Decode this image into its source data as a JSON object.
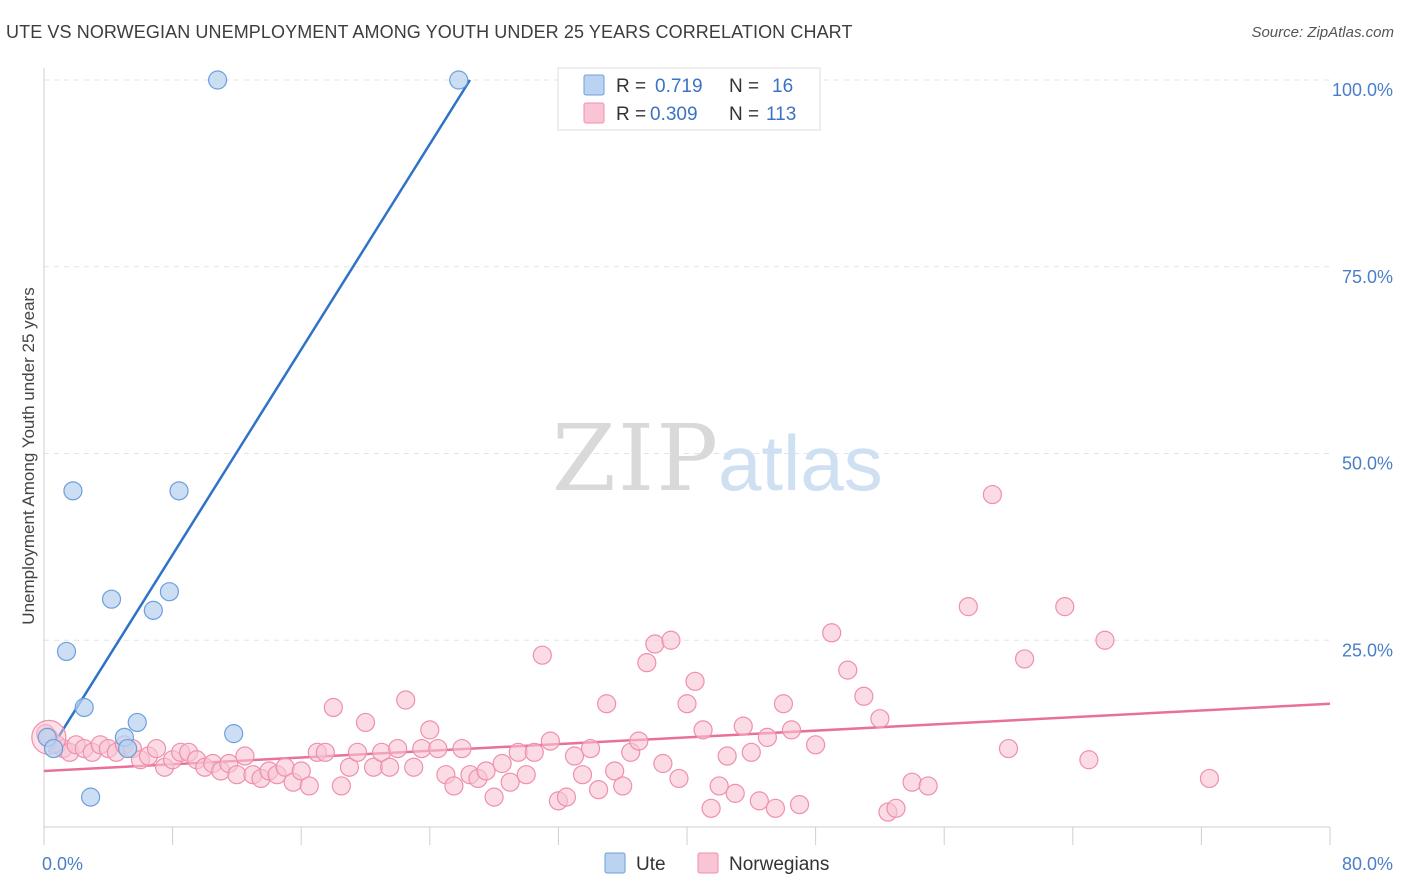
{
  "header": {
    "title": "UTE VS NORWEGIAN UNEMPLOYMENT AMONG YOUTH UNDER 25 YEARS CORRELATION CHART",
    "source": "Source: ZipAtlas.com"
  },
  "watermark": {
    "zip": "ZIP",
    "atlas": "atlas"
  },
  "colors": {
    "ute_fill": "#b9d3f0",
    "ute_stroke": "#6d9fdc",
    "ute_line": "#2f72c8",
    "nor_fill": "#f9c4d4",
    "nor_stroke": "#ef8fae",
    "nor_line": "#e8709a",
    "tick_text": "#4a7fc8",
    "grid": "#e3e3e3"
  },
  "legend": {
    "rows": [
      {
        "r_label": "R =",
        "r_value": "0.719",
        "n_label": "N =",
        "n_value": "16"
      },
      {
        "r_label": "R =",
        "r_value": "0.309",
        "n_label": "N =",
        "n_value": "113"
      }
    ]
  },
  "chart_data": {
    "type": "scatter",
    "ylabel": "Unemployment Among Youth under 25 years",
    "xlim": [
      0,
      80
    ],
    "ylim": [
      0,
      100
    ],
    "x_tick_labels": [
      {
        "value": 0,
        "label": "0.0%"
      },
      {
        "value": 80,
        "label": "80.0%"
      }
    ],
    "y_tick_labels": [
      {
        "value": 25,
        "label": "25.0%"
      },
      {
        "value": 50,
        "label": "50.0%"
      },
      {
        "value": 75,
        "label": "75.0%"
      },
      {
        "value": 100,
        "label": "100.0%"
      }
    ],
    "x_minor_ticks": [
      8,
      16,
      24,
      32,
      40,
      48,
      56,
      64,
      72,
      80
    ],
    "grid": true,
    "series": [
      {
        "name": "Ute",
        "color": "#b9d3f0",
        "points": [
          [
            0.2,
            12.0
          ],
          [
            0.6,
            10.5
          ],
          [
            1.4,
            23.5
          ],
          [
            1.8,
            45.0
          ],
          [
            2.5,
            16.0
          ],
          [
            2.9,
            4.0
          ],
          [
            4.2,
            30.5
          ],
          [
            5.0,
            12.0
          ],
          [
            5.2,
            10.5
          ],
          [
            5.8,
            14.0
          ],
          [
            6.8,
            29.0
          ],
          [
            7.8,
            31.5
          ],
          [
            8.4,
            45.0
          ],
          [
            10.8,
            100.0
          ],
          [
            11.8,
            12.5
          ],
          [
            25.8,
            100.0
          ]
        ],
        "trend": {
          "x1": 0.3,
          "y1": 10.0,
          "x2": 26.5,
          "y2": 100.0
        }
      },
      {
        "name": "Norwegians",
        "color": "#f9c4d4",
        "points": [
          [
            0.3,
            12.0
          ],
          [
            0.8,
            11.0
          ],
          [
            1.2,
            10.5
          ],
          [
            1.6,
            10.0
          ],
          [
            2.0,
            11.0
          ],
          [
            2.5,
            10.5
          ],
          [
            3.0,
            10.0
          ],
          [
            3.5,
            11.0
          ],
          [
            4.0,
            10.5
          ],
          [
            4.5,
            10.0
          ],
          [
            5.0,
            11.0
          ],
          [
            5.5,
            10.5
          ],
          [
            6.0,
            9.0
          ],
          [
            6.5,
            9.5
          ],
          [
            7.0,
            10.5
          ],
          [
            7.5,
            8.0
          ],
          [
            8.0,
            9.0
          ],
          [
            8.5,
            10.0
          ],
          [
            9.0,
            10.0
          ],
          [
            9.5,
            9.0
          ],
          [
            10.0,
            8.0
          ],
          [
            10.5,
            8.5
          ],
          [
            11.0,
            7.5
          ],
          [
            11.5,
            8.5
          ],
          [
            12.0,
            7.0
          ],
          [
            12.5,
            9.5
          ],
          [
            13.0,
            7.0
          ],
          [
            13.5,
            6.5
          ],
          [
            14.0,
            7.5
          ],
          [
            14.5,
            7.0
          ],
          [
            15.0,
            8.0
          ],
          [
            15.5,
            6.0
          ],
          [
            16.0,
            7.5
          ],
          [
            16.5,
            5.5
          ],
          [
            17.0,
            10.0
          ],
          [
            17.5,
            10.0
          ],
          [
            18.0,
            16.0
          ],
          [
            18.5,
            5.5
          ],
          [
            19.0,
            8.0
          ],
          [
            19.5,
            10.0
          ],
          [
            20.0,
            14.0
          ],
          [
            20.5,
            8.0
          ],
          [
            21.0,
            10.0
          ],
          [
            21.5,
            8.0
          ],
          [
            22.0,
            10.5
          ],
          [
            22.5,
            17.0
          ],
          [
            23.0,
            8.0
          ],
          [
            23.5,
            10.5
          ],
          [
            24.0,
            13.0
          ],
          [
            24.5,
            10.5
          ],
          [
            25.0,
            7.0
          ],
          [
            25.5,
            5.5
          ],
          [
            26.0,
            10.5
          ],
          [
            26.5,
            7.0
          ],
          [
            27.0,
            6.5
          ],
          [
            27.5,
            7.5
          ],
          [
            28.0,
            4.0
          ],
          [
            28.5,
            8.5
          ],
          [
            29.0,
            6.0
          ],
          [
            29.5,
            10.0
          ],
          [
            30.0,
            7.0
          ],
          [
            30.5,
            10.0
          ],
          [
            31.0,
            23.0
          ],
          [
            31.5,
            11.5
          ],
          [
            32.0,
            3.5
          ],
          [
            32.5,
            4.0
          ],
          [
            33.0,
            9.5
          ],
          [
            33.5,
            7.0
          ],
          [
            34.0,
            10.5
          ],
          [
            34.5,
            5.0
          ],
          [
            35.0,
            16.5
          ],
          [
            35.5,
            7.5
          ],
          [
            36.0,
            5.5
          ],
          [
            36.5,
            10.0
          ],
          [
            37.0,
            11.5
          ],
          [
            37.5,
            22.0
          ],
          [
            38.0,
            24.5
          ],
          [
            38.5,
            8.5
          ],
          [
            39.0,
            25.0
          ],
          [
            39.5,
            6.5
          ],
          [
            40.0,
            16.5
          ],
          [
            40.5,
            19.5
          ],
          [
            41.0,
            13.0
          ],
          [
            41.5,
            2.5
          ],
          [
            42.0,
            5.5
          ],
          [
            42.5,
            9.5
          ],
          [
            43.0,
            4.5
          ],
          [
            43.5,
            13.5
          ],
          [
            44.0,
            10.0
          ],
          [
            44.5,
            3.5
          ],
          [
            45.0,
            12.0
          ],
          [
            45.5,
            2.5
          ],
          [
            46.0,
            16.5
          ],
          [
            46.5,
            13.0
          ],
          [
            47.0,
            3.0
          ],
          [
            48.0,
            11.0
          ],
          [
            49.0,
            26.0
          ],
          [
            50.0,
            21.0
          ],
          [
            51.0,
            17.5
          ],
          [
            52.0,
            14.5
          ],
          [
            52.5,
            2.0
          ],
          [
            53.0,
            2.5
          ],
          [
            54.0,
            6.0
          ],
          [
            55.0,
            5.5
          ],
          [
            57.5,
            29.5
          ],
          [
            59.0,
            44.5
          ],
          [
            60.0,
            10.5
          ],
          [
            61.0,
            22.5
          ],
          [
            63.5,
            29.5
          ],
          [
            65.0,
            9.0
          ],
          [
            66.0,
            25.0
          ],
          [
            72.5,
            6.5
          ],
          [
            0.1,
            12.5
          ]
        ],
        "trend": {
          "x1": 0.0,
          "y1": 7.5,
          "x2": 80.0,
          "y2": 16.5
        }
      }
    ]
  }
}
